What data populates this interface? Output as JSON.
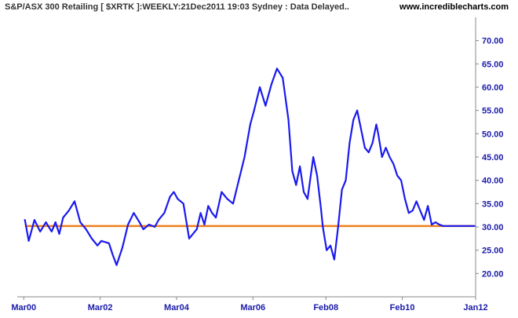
{
  "header": {
    "title": "S&P/ASX 300 Retailing [ $XRTK ]:WEEKLY:21Dec2011 19:03 Sydney : Data Delayed..",
    "site": "www.incrediblecharts.com"
  },
  "chart_data": {
    "type": "line",
    "title": "S&P/ASX 300 Retailing [ $XRTK ]:WEEKLY:21Dec2011 19:03 Sydney : Data Delayed..",
    "xlabel": "",
    "ylabel": "",
    "xlim": [
      2000.0,
      2012.0
    ],
    "ylim": [
      15.0,
      75.0
    ],
    "y_ticks": [
      "20.00",
      "25.00",
      "30.00",
      "35.00",
      "40.00",
      "45.00",
      "50.00",
      "55.00",
      "60.00",
      "65.00",
      "70.00"
    ],
    "x_ticks": [
      {
        "label": "Mar00",
        "x": 2000.17
      },
      {
        "label": "Mar02",
        "x": 2002.17
      },
      {
        "label": "Mar04",
        "x": 2004.17
      },
      {
        "label": "Mar06",
        "x": 2006.17
      },
      {
        "label": "Feb08",
        "x": 2008.08
      },
      {
        "label": "Feb10",
        "x": 2010.08
      },
      {
        "label": "Jan12",
        "x": 2012.0
      }
    ],
    "grid": false,
    "colors": {
      "series": "#1a1aee",
      "reference": "#ee7f1a",
      "ticks": "#1a1aaa",
      "axis": "#888888"
    },
    "series": [
      {
        "x": [
          2000.2,
          2000.3,
          2000.45,
          2000.6,
          2000.75,
          2000.9,
          2001.0,
          2001.1,
          2001.2,
          2001.35,
          2001.5,
          2001.65,
          2001.8,
          2001.95,
          2002.1,
          2002.2,
          2002.4,
          2002.5,
          2002.6,
          2002.75,
          2002.9,
          2003.05,
          2003.2,
          2003.3,
          2003.45,
          2003.6,
          2003.7,
          2003.85,
          2004.0,
          2004.1,
          2004.2,
          2004.35,
          2004.5,
          2004.7,
          2004.8,
          2004.9,
          2005.0,
          2005.1,
          2005.2,
          2005.35,
          2005.5,
          2005.65,
          2005.8,
          2005.95,
          2006.1,
          2006.2,
          2006.35,
          2006.5,
          2006.65,
          2006.8,
          2006.95,
          2007.1,
          2007.2,
          2007.3,
          2007.4,
          2007.5,
          2007.6,
          2007.65,
          2007.75,
          2007.85,
          2007.95,
          2008.0,
          2008.1,
          2008.2,
          2008.3,
          2008.4,
          2008.5,
          2008.6,
          2008.7,
          2008.8,
          2008.9,
          2009.0,
          2009.1,
          2009.2,
          2009.3,
          2009.4,
          2009.45,
          2009.55,
          2009.65,
          2009.75,
          2009.85,
          2009.95,
          2010.05,
          2010.15,
          2010.25,
          2010.35,
          2010.45,
          2010.55,
          2010.65,
          2010.75,
          2010.85,
          2010.95,
          2011.05,
          2011.15,
          2011.25,
          2011.35,
          2011.45,
          2011.55,
          2011.65,
          2011.75,
          2011.85,
          2011.9,
          2011.97
        ],
        "values": [
          31.5,
          27.0,
          31.5,
          29.0,
          31.0,
          29.0,
          31.0,
          28.5,
          32.0,
          33.5,
          35.5,
          31.0,
          29.5,
          27.5,
          26.0,
          27.0,
          26.5,
          24.0,
          21.8,
          25.5,
          30.5,
          33.0,
          31.0,
          29.5,
          30.5,
          30.0,
          31.5,
          33.0,
          36.5,
          37.5,
          36.0,
          35.0,
          27.5,
          29.5,
          33.0,
          30.5,
          34.5,
          33.0,
          32.0,
          37.5,
          36.0,
          35.0,
          40.0,
          45.0,
          52.0,
          55.0,
          60.0,
          56.0,
          60.5,
          64.0,
          62.0,
          53.0,
          42.0,
          39.0,
          43.0,
          37.5,
          36.0,
          39.0,
          45.0,
          41.0,
          34.0,
          30.0,
          25.0,
          26.0,
          23.0,
          30.0,
          38.0,
          40.0,
          48.0,
          53.0,
          55.0,
          51.0,
          47.0,
          46.0,
          48.0,
          52.0,
          50.0,
          45.0,
          47.0,
          45.0,
          43.5,
          41.0,
          40.0,
          36.0,
          33.0,
          33.5,
          35.5,
          33.5,
          31.5,
          34.5,
          30.5,
          31.0,
          30.5,
          30.2,
          30.2,
          30.2,
          30.2,
          30.2,
          30.2,
          30.2,
          30.2,
          30.2,
          30.2
        ]
      },
      {
        "name": "",
        "x": [
          2000.2,
          2011.97
        ],
        "values": [
          30.2,
          30.2
        ]
      }
    ]
  }
}
